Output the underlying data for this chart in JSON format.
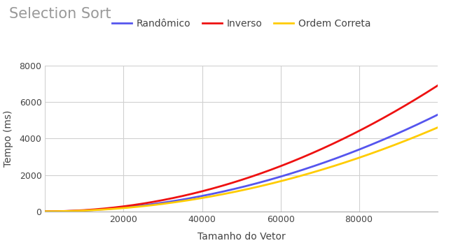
{
  "title": "Selection Sort",
  "xlabel": "Tamanho do Vetor",
  "ylabel": "Tempo (ms)",
  "x_min": 0,
  "x_max": 100000,
  "y_min": 0,
  "y_max": 8000,
  "x_ticks": [
    0,
    20000,
    40000,
    60000,
    80000
  ],
  "y_ticks": [
    0,
    2000,
    4000,
    6000,
    8000
  ],
  "series": [
    {
      "label": "Randômico",
      "color": "#5555ee",
      "end_value": 5300
    },
    {
      "label": "Inverso",
      "color": "#ee1111",
      "end_value": 6900
    },
    {
      "label": "Ordem Correta",
      "color": "#ffcc00",
      "end_value": 4600
    }
  ],
  "background_color": "#ffffff",
  "grid_color": "#d0d0d0",
  "title_color": "#999999",
  "title_fontsize": 15,
  "legend_fontsize": 10,
  "axis_label_fontsize": 10,
  "tick_fontsize": 9,
  "line_width": 2.0
}
